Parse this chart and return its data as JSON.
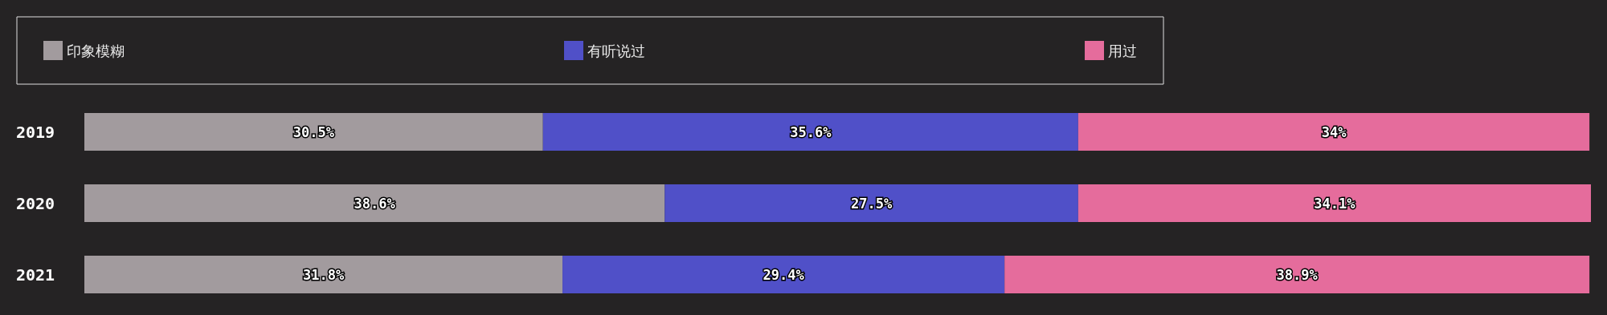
{
  "chart_data": {
    "type": "bar",
    "orientation": "horizontal",
    "stacked": true,
    "categories": [
      "2019",
      "2020",
      "2021"
    ],
    "series": [
      {
        "name": "印象模糊",
        "color": "#a29b9e",
        "values": [
          30.5,
          38.6,
          31.8
        ],
        "value_labels": [
          "30.5%",
          "38.6%",
          "31.8%"
        ]
      },
      {
        "name": "有听说过",
        "color": "#5050c8",
        "values": [
          35.6,
          27.5,
          29.4
        ],
        "value_labels": [
          "35.6%",
          "27.5%",
          "29.4%"
        ]
      },
      {
        "name": "用过",
        "color": "#e56c9c",
        "values": [
          34,
          34.1,
          38.9
        ],
        "value_labels": [
          "34%",
          "34.1%",
          "38.9%"
        ]
      }
    ],
    "legend": "top",
    "tick_labels": "y"
  }
}
